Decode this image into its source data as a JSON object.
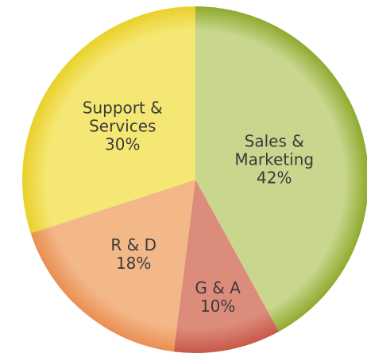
{
  "chart_data": {
    "type": "pie",
    "categories": [
      "Sales & Marketing",
      "G & A",
      "R & D",
      "Support & Services"
    ],
    "values": [
      42,
      10,
      18,
      30
    ],
    "value_labels": [
      "42%",
      "10%",
      "18%",
      "30%"
    ],
    "colors": [
      "#c9d68e",
      "#dc8c7a",
      "#f3b888",
      "#f5e774"
    ],
    "edge_colors": [
      "#8faa2e",
      "#c8584a",
      "#e98f52",
      "#ead02a"
    ]
  }
}
